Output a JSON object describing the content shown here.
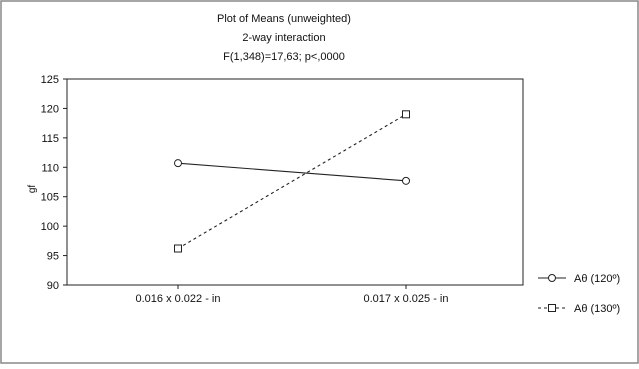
{
  "chart_data": {
    "type": "line",
    "title_lines": [
      "Plot of Means (unweighted)",
      "2-way interaction",
      "F(1,348)=17,63; p<,0000"
    ],
    "ylabel": "gf",
    "xlabel": "",
    "categories": [
      "0.016 x 0.022 - in",
      "0.017 x 0.025 - in"
    ],
    "ylim": [
      90,
      125
    ],
    "yticks": [
      90,
      95,
      100,
      105,
      110,
      115,
      120,
      125
    ],
    "grid": false,
    "legend_position": "right",
    "series": [
      {
        "name": "Aθ (120º)",
        "values": [
          110.7,
          107.7
        ],
        "marker": "circle",
        "line": "solid"
      },
      {
        "name": "Aθ (130º)",
        "values": [
          96.2,
          119.0
        ],
        "marker": "square",
        "line": "dashed"
      }
    ]
  }
}
